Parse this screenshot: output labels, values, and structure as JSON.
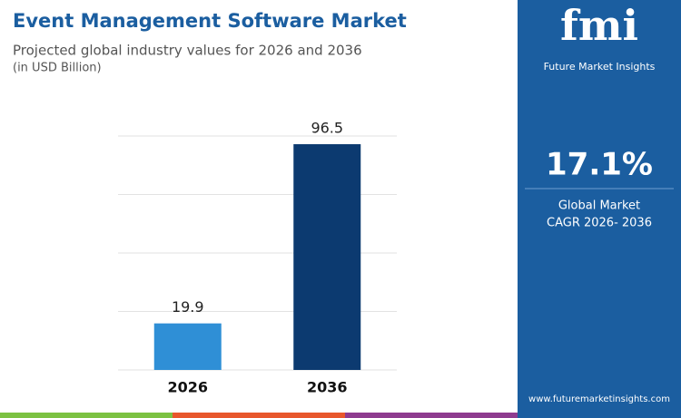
{
  "chart_data": {
    "type": "bar",
    "title": "Event Management Software Market",
    "subtitle": "Projected global industry values for 2026 and 2036",
    "unit_note": "(in USD Billion)",
    "categories": [
      "2026",
      "2036"
    ],
    "values": [
      19.9,
      96.5
    ],
    "colors": [
      "#2f8fd6",
      "#0c3a70"
    ],
    "ylim": [
      0,
      100
    ],
    "yticks": [
      0,
      25,
      50,
      75,
      100
    ],
    "grid": true
  },
  "sidebar": {
    "logo": "fmi",
    "brand": "Future Market Insights",
    "cagr": "17.1%",
    "cagr_label": [
      "Global Market",
      "CAGR 2026- 2036"
    ],
    "website": "www.futuremarketinsights.com"
  }
}
